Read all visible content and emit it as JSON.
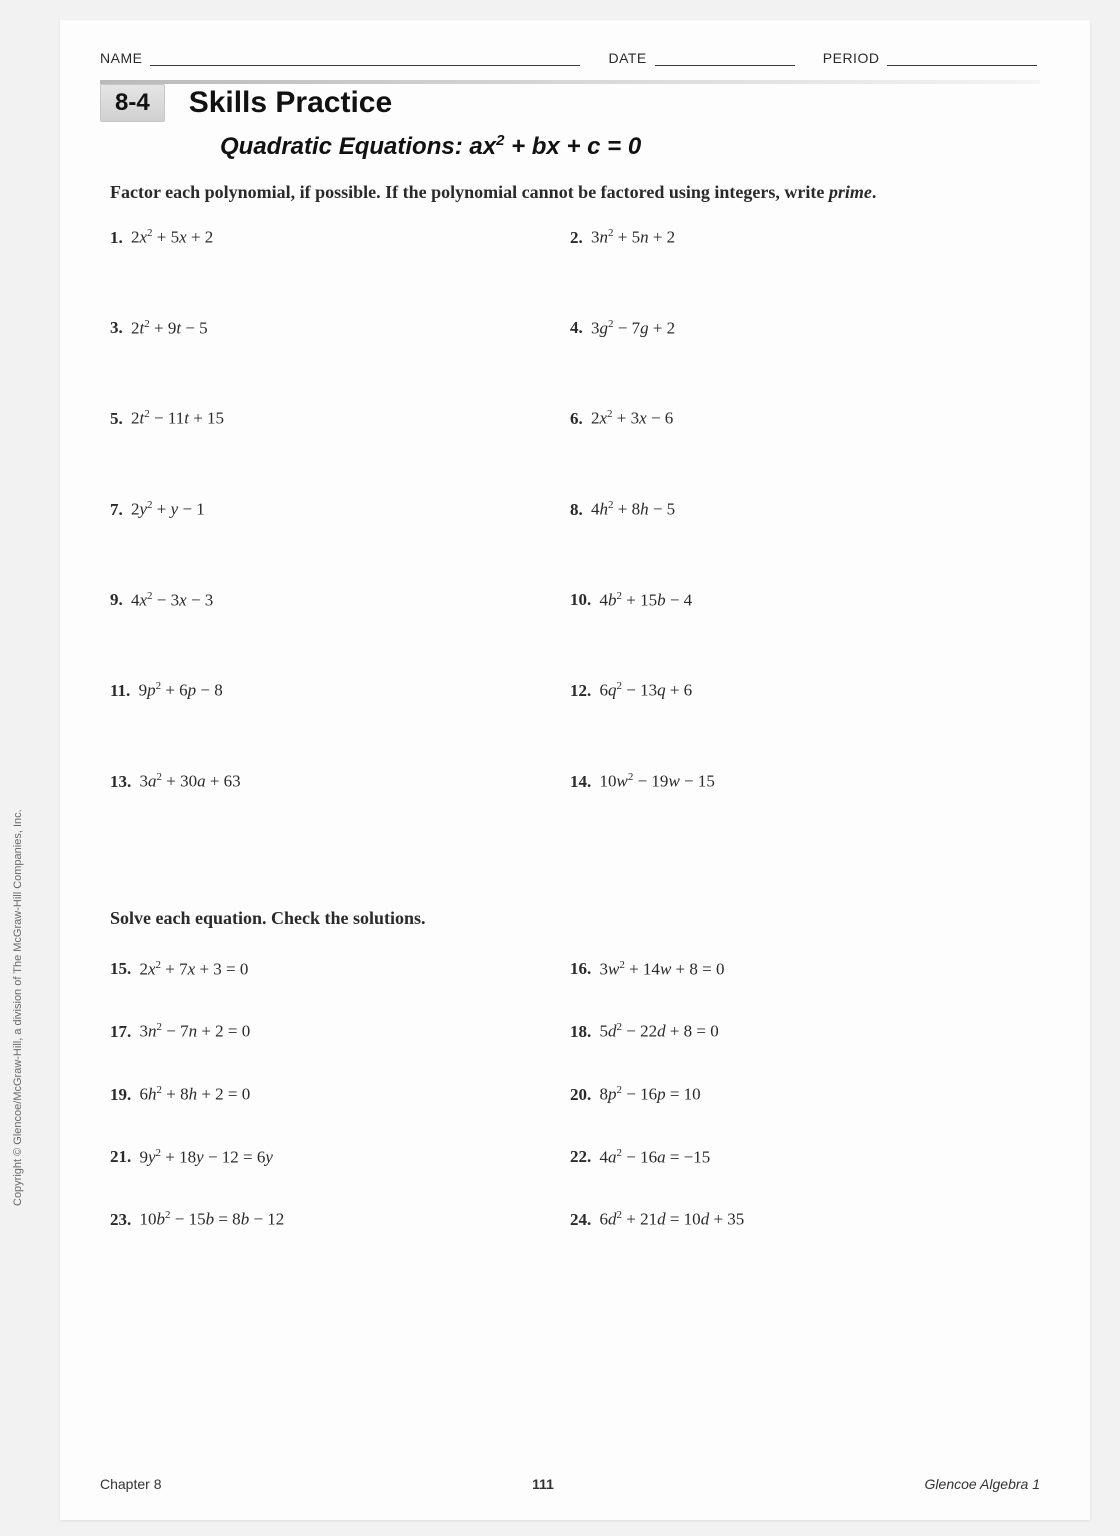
{
  "header": {
    "name": "NAME",
    "date": "DATE",
    "period": "PERIOD"
  },
  "lesson_number": "8-4",
  "lesson_title": "Skills Practice",
  "subtitle_prefix": "Quadratic Equations: ",
  "subtitle_eq_a": "ax",
  "subtitle_eq_rest": " + bx + c = 0",
  "instructions1_a": "Factor each polynomial, if possible. If the polynomial cannot be factored using integers, write ",
  "instructions1_b": "prime",
  "instructions1_c": ".",
  "instructions2": "Solve each equation. Check the solutions.",
  "section1": [
    {
      "n": "1.",
      "a": "2",
      "v": "x",
      "rest": " + 5x + 2"
    },
    {
      "n": "2.",
      "a": "3",
      "v": "n",
      "rest": " + 5n + 2"
    },
    {
      "n": "3.",
      "a": "2",
      "v": "t",
      "rest": " + 9t − 5"
    },
    {
      "n": "4.",
      "a": "3",
      "v": "g",
      "rest": " − 7g + 2"
    },
    {
      "n": "5.",
      "a": "2",
      "v": "t",
      "rest": " − 11t + 15"
    },
    {
      "n": "6.",
      "a": "2",
      "v": "x",
      "rest": " + 3x − 6"
    },
    {
      "n": "7.",
      "a": "2",
      "v": "y",
      "rest": " + y − 1"
    },
    {
      "n": "8.",
      "a": "4",
      "v": "h",
      "rest": " + 8h − 5"
    },
    {
      "n": "9.",
      "a": "4",
      "v": "x",
      "rest": " − 3x − 3"
    },
    {
      "n": "10.",
      "a": "4",
      "v": "b",
      "rest": " + 15b − 4"
    },
    {
      "n": "11.",
      "a": "9",
      "v": "p",
      "rest": " + 6p − 8"
    },
    {
      "n": "12.",
      "a": "6",
      "v": "q",
      "rest": " − 13q + 6"
    },
    {
      "n": "13.",
      "a": "3",
      "v": "a",
      "rest": " + 30a + 63"
    },
    {
      "n": "14.",
      "a": "10",
      "v": "w",
      "rest": " − 19w − 15"
    }
  ],
  "section2": [
    {
      "n": "15.",
      "a": "2",
      "v": "x",
      "rest": " + 7x + 3 = 0"
    },
    {
      "n": "16.",
      "a": "3",
      "v": "w",
      "rest": " + 14w + 8 = 0"
    },
    {
      "n": "17.",
      "a": "3",
      "v": "n",
      "rest": " − 7n + 2 = 0"
    },
    {
      "n": "18.",
      "a": "5",
      "v": "d",
      "rest": " − 22d + 8 = 0"
    },
    {
      "n": "19.",
      "a": "6",
      "v": "h",
      "rest": " + 8h + 2 = 0"
    },
    {
      "n": "20.",
      "a": "8",
      "v": "p",
      "rest": " − 16p = 10"
    },
    {
      "n": "21.",
      "a": "9",
      "v": "y",
      "rest": " + 18y − 12 = 6y"
    },
    {
      "n": "22.",
      "a": "4",
      "v": "a",
      "rest": " − 16a = −15"
    },
    {
      "n": "23.",
      "a": "10",
      "v": "b",
      "rest": " − 15b = 8b − 12"
    },
    {
      "n": "24.",
      "a": "6",
      "v": "d",
      "rest": " + 21d = 10d + 35"
    }
  ],
  "footer": {
    "chapter": "Chapter 8",
    "page": "111",
    "book": "Glencoe Algebra 1"
  },
  "copyright": "Copyright © Glencoe/McGraw-Hill, a division of The McGraw-Hill Companies, Inc."
}
